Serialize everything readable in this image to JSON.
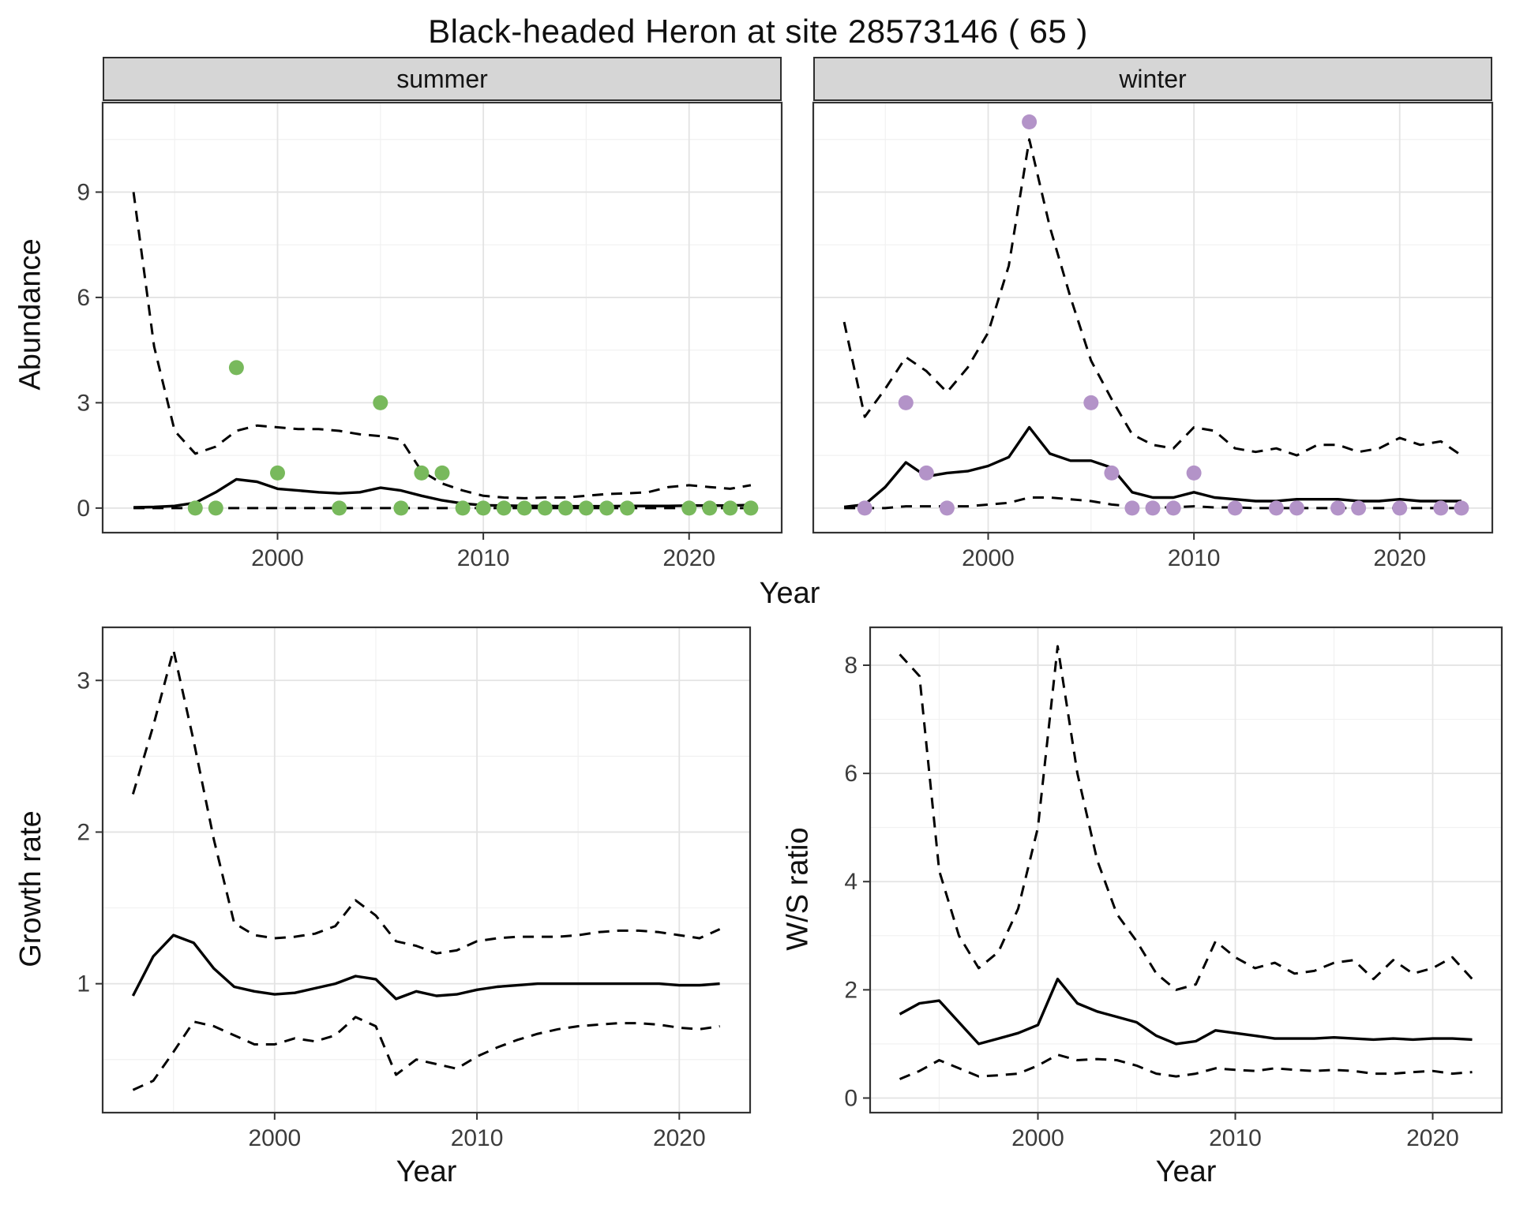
{
  "title": "Black-headed Heron at site 28573146 ( 65 )",
  "colors": {
    "summer_points": "#78b95c",
    "winter_points": "#b393c8",
    "line": "#000000",
    "panel_bg": "#ffffff",
    "panel_border": "#333333",
    "grid_major": "#e3e3e3",
    "grid_minor": "#f1f1f1",
    "strip_bg": "#d6d6d6",
    "tick": "#333333",
    "tick_label": "#3c3c3c"
  },
  "chart_data": [
    {
      "id": "abundance-summer",
      "type": "line",
      "facet_label": "summer",
      "ylabel": "Abundance",
      "xlabel": "Year",
      "xlim": [
        1991.5,
        2024.5
      ],
      "ylim": [
        -0.7,
        11.55
      ],
      "xticks": [
        2000,
        2010,
        2020
      ],
      "yticks": [
        0,
        3,
        6,
        9
      ],
      "grid": true,
      "legend": "none",
      "x": [
        1993,
        1994,
        1995,
        1996,
        1997,
        1998,
        1999,
        2000,
        2001,
        2002,
        2003,
        2004,
        2005,
        2006,
        2007,
        2008,
        2009,
        2010,
        2011,
        2012,
        2013,
        2014,
        2015,
        2016,
        2017,
        2018,
        2019,
        2020,
        2021,
        2022,
        2023
      ],
      "series": [
        {
          "name": "mean",
          "style": "solid",
          "y": [
            0.02,
            0.03,
            0.06,
            0.15,
            0.45,
            0.82,
            0.75,
            0.55,
            0.5,
            0.45,
            0.42,
            0.45,
            0.58,
            0.5,
            0.35,
            0.22,
            0.13,
            0.08,
            0.07,
            0.06,
            0.06,
            0.05,
            0.05,
            0.05,
            0.06,
            0.06,
            0.06,
            0.07,
            0.07,
            0.07,
            0.09
          ]
        },
        {
          "name": "upper-ci",
          "style": "dashed",
          "y": [
            9.0,
            4.6,
            2.2,
            1.55,
            1.75,
            2.2,
            2.35,
            2.3,
            2.25,
            2.25,
            2.2,
            2.1,
            2.05,
            1.95,
            1.05,
            0.7,
            0.5,
            0.35,
            0.3,
            0.28,
            0.3,
            0.3,
            0.35,
            0.4,
            0.42,
            0.45,
            0.6,
            0.65,
            0.6,
            0.55,
            0.65
          ]
        },
        {
          "name": "lower-ci",
          "style": "dashed",
          "y": [
            0,
            0,
            0,
            0,
            0,
            0,
            0,
            0,
            0,
            0,
            0,
            0,
            0,
            0,
            0,
            0,
            0,
            0,
            0,
            0,
            0,
            0,
            0,
            0,
            0,
            0,
            0,
            0,
            0,
            0,
            0
          ]
        }
      ],
      "points": {
        "name": "observed-counts",
        "color": "#78b95c",
        "x": [
          1996,
          1997,
          1998,
          2000,
          2003,
          2005,
          2006,
          2007,
          2008,
          2009,
          2010,
          2011,
          2012,
          2013,
          2014,
          2015,
          2016,
          2017,
          2020,
          2021,
          2022,
          2023
        ],
        "y": [
          0,
          0,
          4,
          1,
          0,
          3,
          0,
          1,
          1,
          0,
          0,
          0,
          0,
          0,
          0,
          0,
          0,
          0,
          0,
          0,
          0,
          0
        ]
      }
    },
    {
      "id": "abundance-winter",
      "type": "line",
      "facet_label": "winter",
      "ylabel": "Abundance",
      "xlabel": "Year",
      "xlim": [
        1991.5,
        2024.5
      ],
      "ylim": [
        -0.7,
        11.55
      ],
      "xticks": [
        2000,
        2010,
        2020
      ],
      "yticks": [
        0,
        3,
        6,
        9
      ],
      "grid": true,
      "legend": "none",
      "x": [
        1993,
        1994,
        1995,
        1996,
        1997,
        1998,
        1999,
        2000,
        2001,
        2002,
        2003,
        2004,
        2005,
        2006,
        2007,
        2008,
        2009,
        2010,
        2011,
        2012,
        2013,
        2014,
        2015,
        2016,
        2017,
        2018,
        2019,
        2020,
        2021,
        2022,
        2023
      ],
      "series": [
        {
          "name": "mean",
          "style": "solid",
          "y": [
            0.03,
            0.1,
            0.6,
            1.3,
            0.9,
            1.0,
            1.05,
            1.2,
            1.45,
            2.3,
            1.55,
            1.35,
            1.35,
            1.15,
            0.45,
            0.3,
            0.3,
            0.45,
            0.3,
            0.25,
            0.2,
            0.2,
            0.25,
            0.25,
            0.25,
            0.2,
            0.2,
            0.25,
            0.2,
            0.2,
            0.2
          ]
        },
        {
          "name": "upper-ci",
          "style": "dashed",
          "y": [
            5.3,
            2.6,
            3.4,
            4.3,
            3.9,
            3.3,
            4.0,
            5.0,
            6.9,
            10.5,
            8.0,
            6.0,
            4.2,
            3.1,
            2.1,
            1.8,
            1.7,
            2.3,
            2.2,
            1.7,
            1.6,
            1.7,
            1.5,
            1.8,
            1.8,
            1.6,
            1.7,
            2.0,
            1.8,
            1.9,
            1.5
          ]
        },
        {
          "name": "lower-ci",
          "style": "dashed",
          "y": [
            0,
            0,
            0,
            0.05,
            0.05,
            0.05,
            0.05,
            0.1,
            0.15,
            0.3,
            0.3,
            0.25,
            0.2,
            0.1,
            0.05,
            0.02,
            0.02,
            0.05,
            0.02,
            0.02,
            0,
            0,
            0,
            0,
            0,
            0,
            0,
            0,
            0,
            0,
            0
          ]
        }
      ],
      "points": {
        "name": "observed-counts",
        "color": "#b393c8",
        "x": [
          1994,
          1996,
          1997,
          1998,
          2002,
          2005,
          2006,
          2007,
          2008,
          2009,
          2010,
          2012,
          2014,
          2015,
          2017,
          2018,
          2020,
          2022,
          2023
        ],
        "y": [
          0,
          3,
          1,
          0,
          11,
          3,
          1,
          0,
          0,
          0,
          1,
          0,
          0,
          0,
          0,
          0,
          0,
          0,
          0
        ]
      }
    },
    {
      "id": "growth-rate",
      "type": "line",
      "facet_label": "",
      "ylabel": "Growth rate",
      "xlabel": "Year",
      "xlim": [
        1991.5,
        2023.5
      ],
      "ylim": [
        0.15,
        3.35
      ],
      "xticks": [
        2000,
        2010,
        2020
      ],
      "yticks": [
        1,
        2,
        3
      ],
      "grid": true,
      "legend": "none",
      "x": [
        1993,
        1994,
        1995,
        1996,
        1997,
        1998,
        1999,
        2000,
        2001,
        2002,
        2003,
        2004,
        2005,
        2006,
        2007,
        2008,
        2009,
        2010,
        2011,
        2012,
        2013,
        2014,
        2015,
        2016,
        2017,
        2018,
        2019,
        2020,
        2021,
        2022
      ],
      "series": [
        {
          "name": "mean",
          "style": "solid",
          "y": [
            0.92,
            1.18,
            1.32,
            1.27,
            1.1,
            0.98,
            0.95,
            0.93,
            0.94,
            0.97,
            1.0,
            1.05,
            1.03,
            0.9,
            0.95,
            0.92,
            0.93,
            0.96,
            0.98,
            0.99,
            1.0,
            1.0,
            1.0,
            1.0,
            1.0,
            1.0,
            1.0,
            0.99,
            0.99,
            1.0
          ]
        },
        {
          "name": "upper-ci",
          "style": "dashed",
          "y": [
            2.25,
            2.7,
            3.2,
            2.6,
            1.95,
            1.4,
            1.32,
            1.3,
            1.31,
            1.33,
            1.38,
            1.55,
            1.45,
            1.28,
            1.25,
            1.2,
            1.22,
            1.28,
            1.3,
            1.31,
            1.31,
            1.31,
            1.32,
            1.34,
            1.35,
            1.35,
            1.34,
            1.32,
            1.3,
            1.36
          ]
        },
        {
          "name": "lower-ci",
          "style": "dashed",
          "y": [
            0.3,
            0.36,
            0.55,
            0.75,
            0.72,
            0.66,
            0.6,
            0.6,
            0.64,
            0.62,
            0.66,
            0.78,
            0.72,
            0.4,
            0.5,
            0.47,
            0.44,
            0.52,
            0.58,
            0.63,
            0.67,
            0.7,
            0.72,
            0.73,
            0.74,
            0.74,
            0.73,
            0.71,
            0.7,
            0.72
          ]
        }
      ]
    },
    {
      "id": "ws-ratio",
      "type": "line",
      "facet_label": "",
      "ylabel": "W/S ratio",
      "xlabel": "Year",
      "xlim": [
        1991.5,
        2023.5
      ],
      "ylim": [
        -0.27,
        8.7
      ],
      "xticks": [
        2000,
        2010,
        2020
      ],
      "yticks": [
        0,
        2,
        4,
        6,
        8
      ],
      "grid": true,
      "legend": "none",
      "x": [
        1993,
        1994,
        1995,
        1996,
        1997,
        1998,
        1999,
        2000,
        2001,
        2002,
        2003,
        2004,
        2005,
        2006,
        2007,
        2008,
        2009,
        2010,
        2011,
        2012,
        2013,
        2014,
        2015,
        2016,
        2017,
        2018,
        2019,
        2020,
        2021,
        2022
      ],
      "series": [
        {
          "name": "mean",
          "style": "solid",
          "y": [
            1.55,
            1.75,
            1.8,
            1.4,
            1.0,
            1.1,
            1.2,
            1.35,
            2.2,
            1.75,
            1.6,
            1.5,
            1.4,
            1.15,
            1.0,
            1.05,
            1.25,
            1.2,
            1.15,
            1.1,
            1.1,
            1.1,
            1.12,
            1.1,
            1.08,
            1.1,
            1.08,
            1.1,
            1.1,
            1.08
          ]
        },
        {
          "name": "upper-ci",
          "style": "dashed",
          "y": [
            8.2,
            7.8,
            4.2,
            3.0,
            2.4,
            2.7,
            3.5,
            5.0,
            8.35,
            6.0,
            4.4,
            3.4,
            2.9,
            2.3,
            2.0,
            2.1,
            2.9,
            2.6,
            2.4,
            2.5,
            2.3,
            2.35,
            2.5,
            2.55,
            2.2,
            2.55,
            2.3,
            2.4,
            2.6,
            2.2
          ]
        },
        {
          "name": "lower-ci",
          "style": "dashed",
          "y": [
            0.35,
            0.5,
            0.7,
            0.55,
            0.4,
            0.42,
            0.45,
            0.6,
            0.8,
            0.7,
            0.72,
            0.7,
            0.6,
            0.45,
            0.4,
            0.45,
            0.55,
            0.52,
            0.5,
            0.55,
            0.52,
            0.5,
            0.52,
            0.5,
            0.45,
            0.45,
            0.48,
            0.5,
            0.45,
            0.48
          ]
        }
      ]
    }
  ]
}
